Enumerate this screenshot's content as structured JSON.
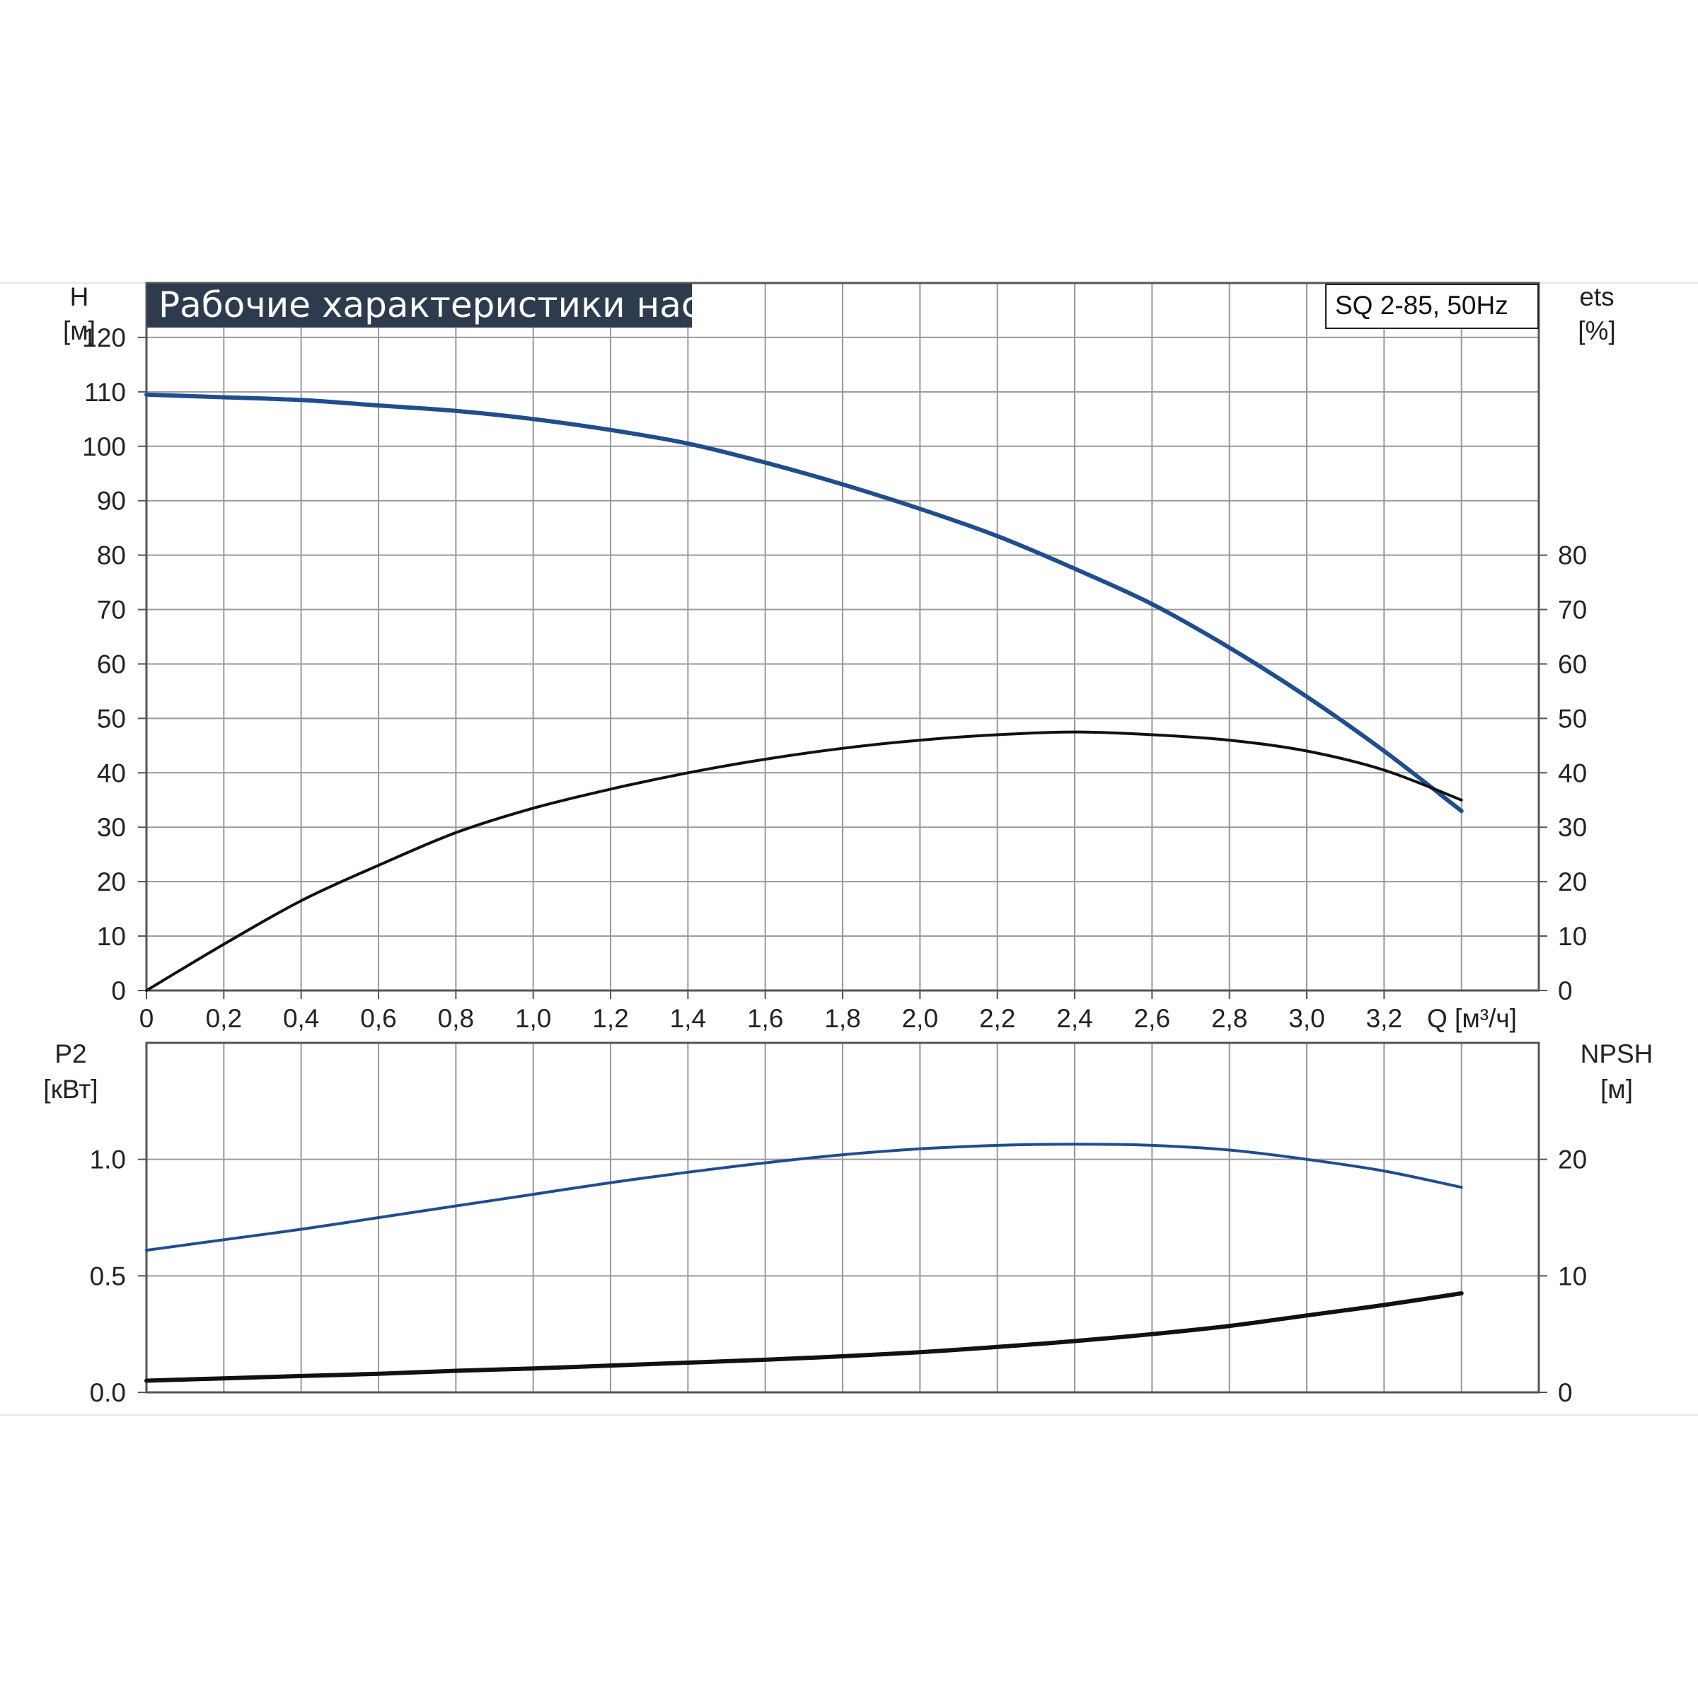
{
  "chart_data": [
    {
      "type": "line",
      "title": "Рабочие характеристики насоса",
      "model_label": "SQ 2-85, 50Hz",
      "x_label": "Q [м³/ч]",
      "x_range": [
        0,
        3.6
      ],
      "x_ticks": [
        "0",
        "0,2",
        "0,4",
        "0,6",
        "0,8",
        "1,0",
        "1,2",
        "1,4",
        "1,6",
        "1,8",
        "2,0",
        "2,2",
        "2,4",
        "2,6",
        "2,8",
        "3,0",
        "3,2"
      ],
      "left_axis": {
        "label_top": "H",
        "label_unit": "[м]",
        "range": [
          0,
          130
        ],
        "ticks": [
          "0",
          "10",
          "20",
          "30",
          "40",
          "50",
          "60",
          "70",
          "80",
          "90",
          "100",
          "110",
          "120"
        ]
      },
      "right_axis": {
        "label_top": "ets",
        "label_unit": "[%]",
        "range": [
          0,
          130
        ],
        "ticks": [
          "0",
          "10",
          "20",
          "30",
          "40",
          "50",
          "60",
          "70",
          "80"
        ]
      },
      "grid": true,
      "series": [
        {
          "axis": "left",
          "color": "#1f4e8f",
          "x": [
            0,
            0.2,
            0.4,
            0.6,
            0.8,
            1.0,
            1.2,
            1.4,
            1.6,
            1.8,
            2.0,
            2.2,
            2.4,
            2.6,
            2.8,
            3.0,
            3.2,
            3.4
          ],
          "y": [
            109.5,
            109,
            108.5,
            107.5,
            106.5,
            105,
            103,
            100.5,
            97,
            93,
            88.5,
            83.5,
            77.5,
            71,
            63,
            54,
            44,
            33
          ]
        },
        {
          "axis": "right",
          "color": "#111111",
          "x": [
            0,
            0.2,
            0.4,
            0.6,
            0.8,
            1.0,
            1.2,
            1.4,
            1.6,
            1.8,
            2.0,
            2.2,
            2.4,
            2.6,
            2.8,
            3.0,
            3.2,
            3.4
          ],
          "y": [
            0,
            8.5,
            16.5,
            23,
            29,
            33.5,
            37,
            40,
            42.5,
            44.5,
            46,
            47,
            47.5,
            47,
            46,
            44,
            40.5,
            35
          ]
        }
      ]
    },
    {
      "type": "line",
      "x_range": [
        0,
        3.6
      ],
      "left_axis": {
        "label_top": "P2",
        "label_unit": "[кВт]",
        "range": [
          0,
          1.5
        ],
        "ticks": [
          "0.0",
          "0.5",
          "1.0"
        ]
      },
      "right_axis": {
        "label_top": "NPSH",
        "label_unit": "[м]",
        "range": [
          0,
          30
        ],
        "ticks": [
          "0",
          "10",
          "20"
        ]
      },
      "grid": true,
      "series": [
        {
          "axis": "left",
          "color": "#1f4e8f",
          "x": [
            0,
            0.2,
            0.4,
            0.6,
            0.8,
            1.0,
            1.2,
            1.4,
            1.6,
            1.8,
            2.0,
            2.2,
            2.4,
            2.6,
            2.8,
            3.0,
            3.2,
            3.4
          ],
          "y": [
            0.61,
            0.655,
            0.7,
            0.75,
            0.8,
            0.85,
            0.9,
            0.945,
            0.985,
            1.02,
            1.045,
            1.06,
            1.065,
            1.06,
            1.04,
            1.0,
            0.95,
            0.88
          ]
        },
        {
          "axis": "right",
          "color": "#111111",
          "x": [
            0,
            0.2,
            0.4,
            0.6,
            0.8,
            1.0,
            1.2,
            1.4,
            1.6,
            1.8,
            2.0,
            2.2,
            2.4,
            2.6,
            2.8,
            3.0,
            3.2,
            3.4
          ],
          "y": [
            1.0,
            1.2,
            1.4,
            1.6,
            1.85,
            2.05,
            2.3,
            2.55,
            2.8,
            3.1,
            3.45,
            3.9,
            4.4,
            5.0,
            5.7,
            6.6,
            7.5,
            8.5
          ]
        }
      ]
    }
  ]
}
